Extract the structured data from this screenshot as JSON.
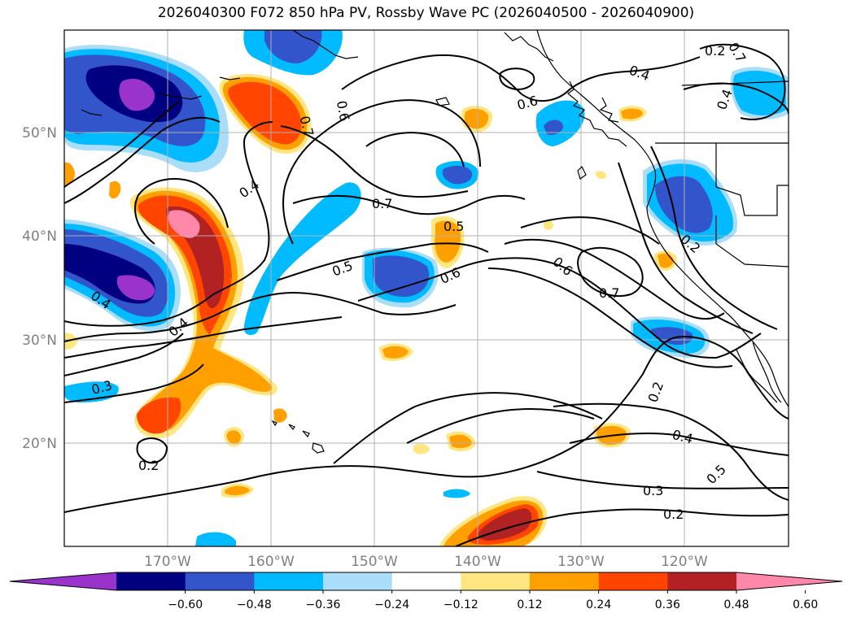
{
  "title": "2026040300 F072 850 hPa PV, Rossby Wave PC (2026040500 - 2026040900)",
  "map": {
    "lon_range": [
      -180,
      -110
    ],
    "lat_range": [
      10,
      60
    ],
    "lat_ticks": [
      "20°N",
      "30°N",
      "40°N",
      "50°N"
    ],
    "lon_ticks": [
      "170°W",
      "160°W",
      "150°W",
      "140°W",
      "130°W",
      "120°W"
    ]
  },
  "colorbar": {
    "tick_labels": [
      "−0.60",
      "−0.48",
      "−0.36",
      "−0.24",
      "−0.12",
      "0.12",
      "0.24",
      "0.36",
      "0.48",
      "0.60"
    ],
    "colors": [
      "#9933cc",
      "#000080",
      "#3355cc",
      "#00bbff",
      "#aaddf7",
      "#ffffff",
      "#ffe680",
      "#ffa000",
      "#ff4500",
      "#b22222",
      "#ff88aa"
    ]
  },
  "contour_labels": [
    "0.2",
    "0.3",
    "0.4",
    "0.5",
    "0.6",
    "0.7"
  ]
}
